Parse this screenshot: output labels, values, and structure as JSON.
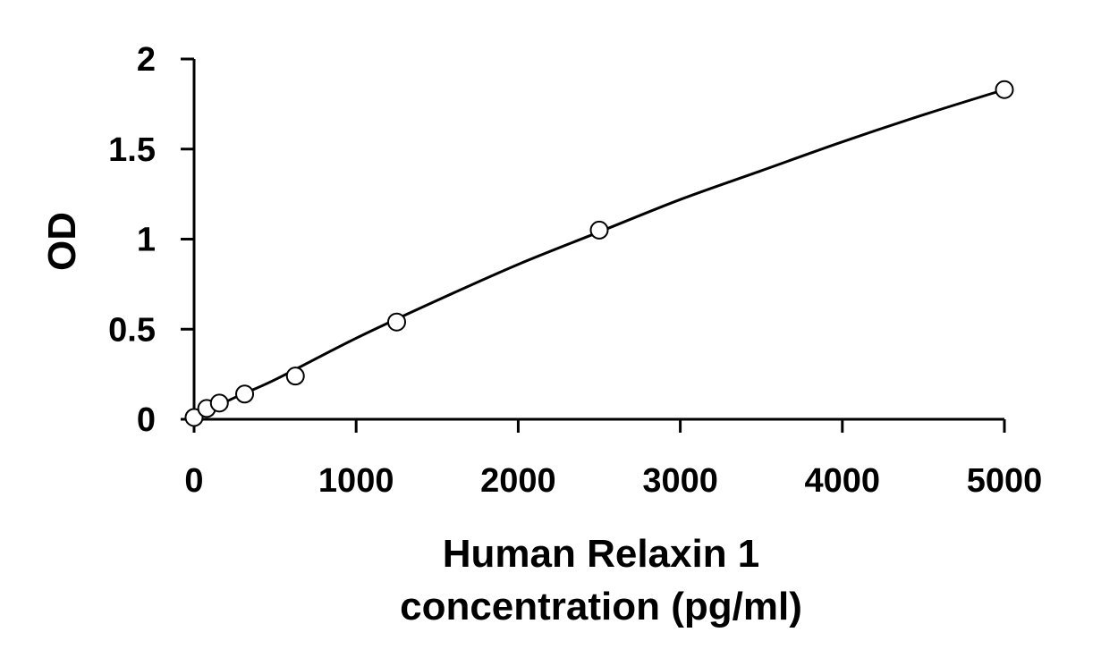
{
  "chart_data": {
    "type": "scatter",
    "title": "",
    "xlabel_lines": [
      "Human Relaxin 1",
      "concentration (pg/ml)"
    ],
    "ylabel": "OD",
    "xlim": [
      0,
      5000
    ],
    "ylim": [
      0,
      2
    ],
    "xticks": [
      0,
      1000,
      2000,
      3000,
      4000,
      5000
    ],
    "xtick_labels": [
      "0",
      "1000",
      "2000",
      "3000",
      "4000",
      "5000"
    ],
    "yticks": [
      0,
      0.5,
      1,
      1.5,
      2
    ],
    "ytick_labels": [
      "0",
      "0.5",
      "1",
      "1.5",
      "2"
    ],
    "grid": false,
    "legend": "none",
    "series": [
      {
        "x": [
          0,
          78,
          156,
          312,
          625,
          1250,
          2500,
          5000
        ],
        "y": [
          0.01,
          0.06,
          0.09,
          0.14,
          0.24,
          0.54,
          1.05,
          1.83
        ]
      }
    ],
    "fit_curve": {
      "x": [
        0,
        250,
        500,
        1000,
        1500,
        2000,
        2500,
        3000,
        3500,
        4000,
        4500,
        5000
      ],
      "y": [
        0.01,
        0.12,
        0.22,
        0.45,
        0.66,
        0.86,
        1.04,
        1.22,
        1.38,
        1.54,
        1.69,
        1.83
      ]
    },
    "colors": {
      "line": "#000000",
      "marker_fill": "#ffffff",
      "marker_stroke": "#000000"
    }
  }
}
